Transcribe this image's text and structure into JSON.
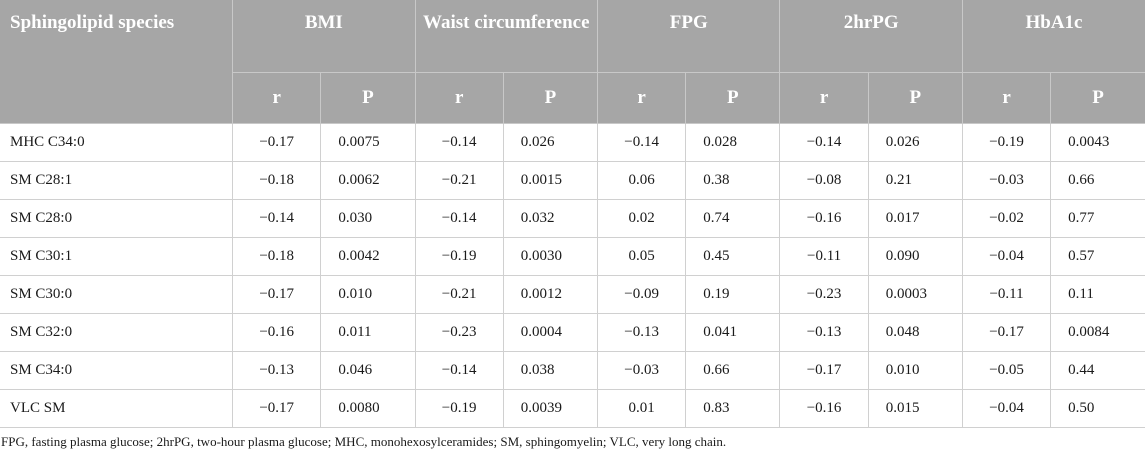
{
  "table": {
    "species_header": "Sphingolipid species",
    "groups": [
      "BMI",
      "Waist circumference",
      "FPG",
      "2hrPG",
      "HbA1c"
    ],
    "sub_r": "r",
    "sub_p": "P",
    "rows": [
      {
        "species": "MHC C34:0",
        "values": [
          "−0.17",
          "0.0075",
          "−0.14",
          "0.026",
          "−0.14",
          "0.028",
          "−0.14",
          "0.026",
          "−0.19",
          "0.0043"
        ]
      },
      {
        "species": "SM C28:1",
        "values": [
          "−0.18",
          "0.0062",
          "−0.21",
          "0.0015",
          "0.06",
          "0.38",
          "−0.08",
          "0.21",
          "−0.03",
          "0.66"
        ]
      },
      {
        "species": "SM C28:0",
        "values": [
          "−0.14",
          "0.030",
          "−0.14",
          "0.032",
          "0.02",
          "0.74",
          "−0.16",
          "0.017",
          "−0.02",
          "0.77"
        ]
      },
      {
        "species": "SM C30:1",
        "values": [
          "−0.18",
          "0.0042",
          "−0.19",
          "0.0030",
          "0.05",
          "0.45",
          "−0.11",
          "0.090",
          "−0.04",
          "0.57"
        ]
      },
      {
        "species": "SM C30:0",
        "values": [
          "−0.17",
          "0.010",
          "−0.21",
          "0.0012",
          "−0.09",
          "0.19",
          "−0.23",
          "0.0003",
          "−0.11",
          "0.11"
        ]
      },
      {
        "species": "SM C32:0",
        "values": [
          "−0.16",
          "0.011",
          "−0.23",
          "0.0004",
          "−0.13",
          "0.041",
          "−0.13",
          "0.048",
          "−0.17",
          "0.0084"
        ]
      },
      {
        "species": "SM C34:0",
        "values": [
          "−0.13",
          "0.046",
          "−0.14",
          "0.038",
          "−0.03",
          "0.66",
          "−0.17",
          "0.010",
          "−0.05",
          "0.44"
        ]
      },
      {
        "species": "VLC SM",
        "values": [
          "−0.17",
          "0.0080",
          "−0.19",
          "0.0039",
          "0.01",
          "0.83",
          "−0.16",
          "0.015",
          "−0.04",
          "0.50"
        ]
      }
    ]
  },
  "footnote": "FPG, fasting plasma glucose; 2hrPG, two-hour plasma glucose; MHC, monohexosylceramides; SM, sphingomyelin; VLC, very long chain."
}
